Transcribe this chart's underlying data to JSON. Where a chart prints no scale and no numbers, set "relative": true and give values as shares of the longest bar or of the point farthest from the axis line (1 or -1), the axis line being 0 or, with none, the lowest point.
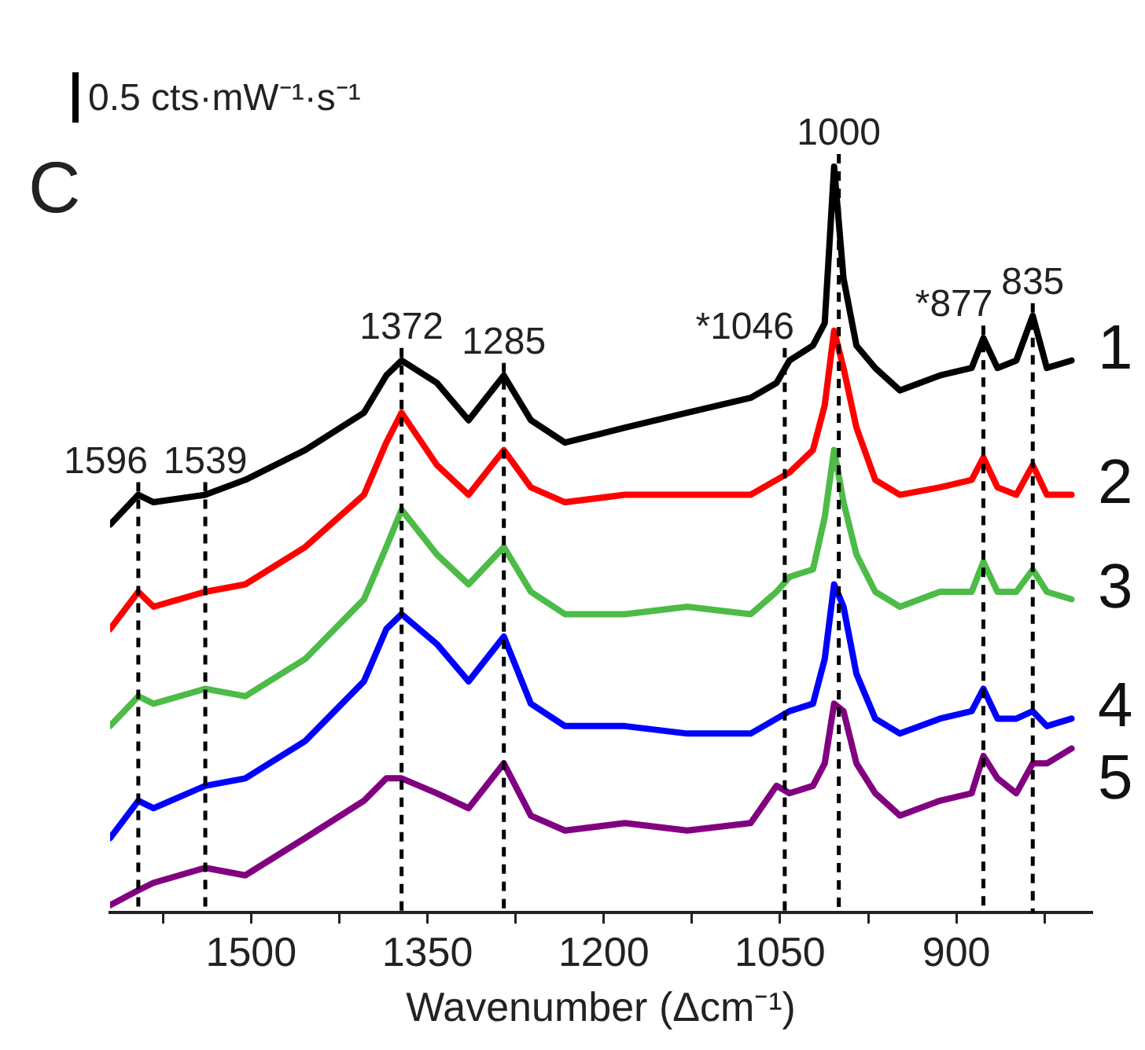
{
  "chart_data": {
    "type": "line",
    "relative": true,
    "xlabel": "Wavenumber (Δcm⁻¹)",
    "annotations": [
      "0.5 cts·mW⁻¹·s⁻¹",
      "C"
    ],
    "x": [
      1620,
      1596,
      1583,
      1539,
      1505,
      1454,
      1404,
      1385,
      1372,
      1342,
      1315,
      1285,
      1262,
      1233,
      1182,
      1129,
      1075,
      1053,
      1042,
      1022,
      1012,
      1004,
      996,
      985,
      969,
      948,
      914,
      887,
      877,
      865,
      849,
      835,
      823,
      802
    ],
    "xlim": [
      1620,
      785
    ],
    "xticks": [
      {
        "value": 1575,
        "label": null
      },
      1500,
      {
        "value": 1425,
        "label": null
      },
      1350,
      {
        "value": 1275,
        "label": null
      },
      1200,
      {
        "value": 1125,
        "label": null
      },
      1050,
      {
        "value": 975,
        "label": null
      },
      900,
      {
        "value": 825,
        "label": null
      }
    ],
    "series": [
      {
        "name": "1",
        "color": "#000000",
        "values": [
          0.52,
          0.56,
          0.55,
          0.56,
          0.58,
          0.62,
          0.67,
          0.72,
          0.74,
          0.71,
          0.66,
          0.72,
          0.66,
          0.63,
          0.65,
          0.67,
          0.69,
          0.71,
          0.74,
          0.76,
          0.79,
          1,
          0.85,
          0.76,
          0.73,
          0.7,
          0.72,
          0.73,
          0.77,
          0.73,
          0.74,
          0.8,
          0.73,
          0.74
        ]
      },
      {
        "name": "2",
        "color": "#ff0000",
        "values": [
          0.38,
          0.43,
          0.41,
          0.43,
          0.44,
          0.49,
          0.56,
          0.63,
          0.67,
          0.6,
          0.56,
          0.62,
          0.57,
          0.55,
          0.56,
          0.56,
          0.56,
          0.58,
          0.59,
          0.62,
          0.68,
          0.78,
          0.73,
          0.65,
          0.58,
          0.56,
          0.57,
          0.58,
          0.61,
          0.57,
          0.56,
          0.6,
          0.56,
          0.56
        ]
      },
      {
        "name": "3",
        "color": "#4cbb47",
        "values": [
          0.25,
          0.29,
          0.28,
          0.3,
          0.29,
          0.34,
          0.42,
          0.49,
          0.54,
          0.48,
          0.44,
          0.49,
          0.43,
          0.4,
          0.4,
          0.41,
          0.4,
          0.43,
          0.45,
          0.46,
          0.53,
          0.62,
          0.55,
          0.48,
          0.43,
          0.41,
          0.43,
          0.43,
          0.47,
          0.43,
          0.43,
          0.46,
          0.43,
          0.42
        ]
      },
      {
        "name": "4",
        "color": "#0000ff",
        "values": [
          0.1,
          0.15,
          0.14,
          0.17,
          0.18,
          0.23,
          0.31,
          0.38,
          0.4,
          0.36,
          0.31,
          0.37,
          0.28,
          0.25,
          0.25,
          0.24,
          0.24,
          0.26,
          0.27,
          0.28,
          0.34,
          0.44,
          0.41,
          0.32,
          0.26,
          0.24,
          0.26,
          0.27,
          0.3,
          0.26,
          0.26,
          0.27,
          0.25,
          0.26
        ]
      },
      {
        "name": "5",
        "color": "#800080",
        "values": [
          0.01,
          0.03,
          0.04,
          0.06,
          0.05,
          0.1,
          0.15,
          0.18,
          0.18,
          0.16,
          0.14,
          0.2,
          0.13,
          0.11,
          0.12,
          0.11,
          0.12,
          0.17,
          0.16,
          0.17,
          0.2,
          0.28,
          0.27,
          0.2,
          0.16,
          0.13,
          0.15,
          0.16,
          0.21,
          0.18,
          0.16,
          0.2,
          0.2,
          0.22
        ]
      }
    ],
    "ref_lines": [
      {
        "axis": "x",
        "value": 1596,
        "label": "1596",
        "color": "#000000",
        "line_style": "dashed"
      },
      {
        "axis": "x",
        "value": 1539,
        "label": "1539",
        "color": "#000000",
        "line_style": "dashed"
      },
      {
        "axis": "x",
        "value": 1372,
        "label": "1372",
        "color": "#000000",
        "line_style": "dashed"
      },
      {
        "axis": "x",
        "value": 1285,
        "label": "1285",
        "color": "#000000",
        "line_style": "dashed"
      },
      {
        "axis": "x",
        "value": 1046,
        "label": "*1046",
        "color": "#000000",
        "line_style": "dashed"
      },
      {
        "axis": "x",
        "value": 1000,
        "label": "1000",
        "color": "#000000",
        "line_style": "dashed"
      },
      {
        "axis": "x",
        "value": 877,
        "label": "*877",
        "color": "#000000",
        "line_style": "dashed"
      },
      {
        "axis": "x",
        "value": 835,
        "label": "835",
        "color": "#000000",
        "line_style": "dashed"
      }
    ],
    "grid": false,
    "legend": false,
    "marker": "none",
    "line_style": "solid"
  }
}
